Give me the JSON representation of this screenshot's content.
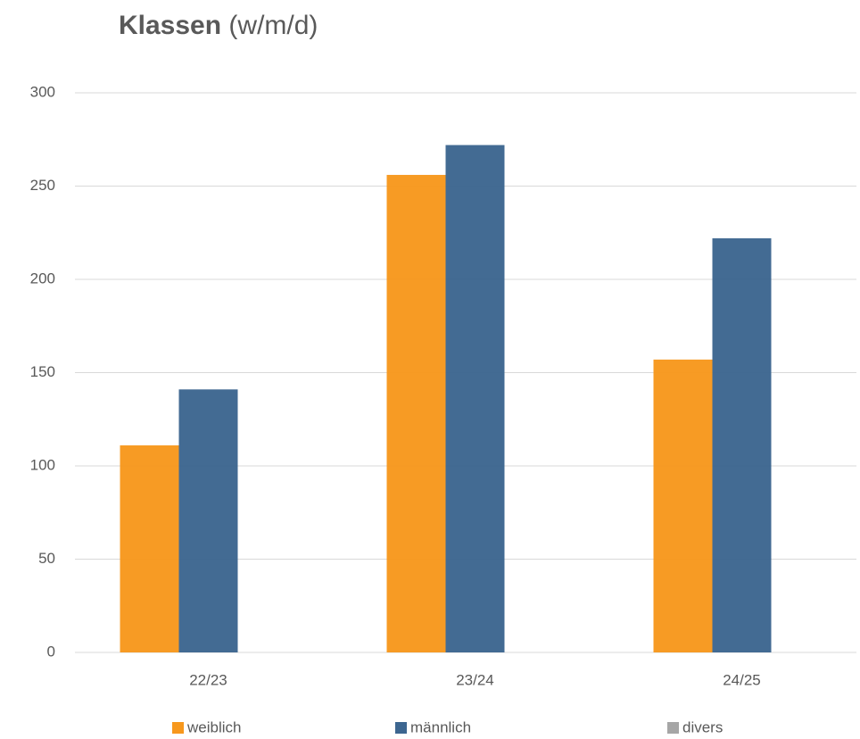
{
  "chart_data": {
    "type": "bar",
    "title": [
      "Klassen",
      "(w/m/d)"
    ],
    "categories": [
      "22/23",
      "23/24",
      "24/25"
    ],
    "series": [
      {
        "name": "weiblich",
        "color": "#f7981d",
        "values": [
          111,
          256,
          157
        ]
      },
      {
        "name": "männlich",
        "color": "#3d6690",
        "values": [
          141,
          272,
          222
        ]
      },
      {
        "name": "divers",
        "color": "#a6a6a6",
        "values": [
          0,
          0,
          0
        ]
      }
    ],
    "ylim": [
      0,
      300
    ],
    "yticks": [
      0,
      50,
      100,
      150,
      200,
      250,
      300
    ],
    "grid": true,
    "legend": "bottom"
  }
}
